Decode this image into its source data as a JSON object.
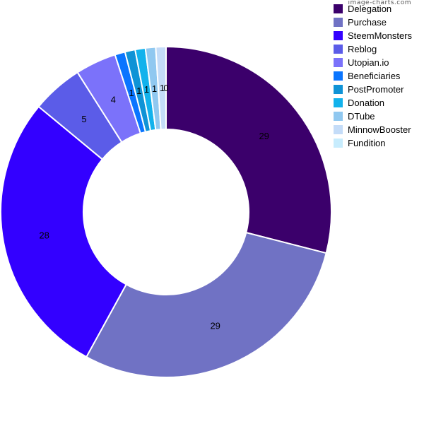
{
  "watermark": "image-charts.com",
  "chart_data": {
    "type": "pie",
    "variant": "donut",
    "title": "",
    "legend_position": "top-right",
    "categories": [
      "Delegation",
      "Purchase",
      "SteemMonsters",
      "Reblog",
      "Utopian.io",
      "Beneficiaries",
      "PostPromoter",
      "Donation",
      "DTube",
      "MinnowBooster",
      "Fundition"
    ],
    "values": [
      29,
      29,
      28,
      5,
      4,
      1,
      1,
      1,
      1,
      1,
      0
    ],
    "value_labels": [
      "29",
      "29",
      "28",
      "5",
      "4",
      "1",
      "1",
      "1",
      "1",
      "1",
      "0"
    ],
    "colors": [
      "#3b006b",
      "#7072c4",
      "#3300ff",
      "#5b5ce8",
      "#7b72fa",
      "#0a75ff",
      "#0f93d6",
      "#12b2ec",
      "#90c8f0",
      "#c4dcf8",
      "#c7ecfd"
    ]
  }
}
